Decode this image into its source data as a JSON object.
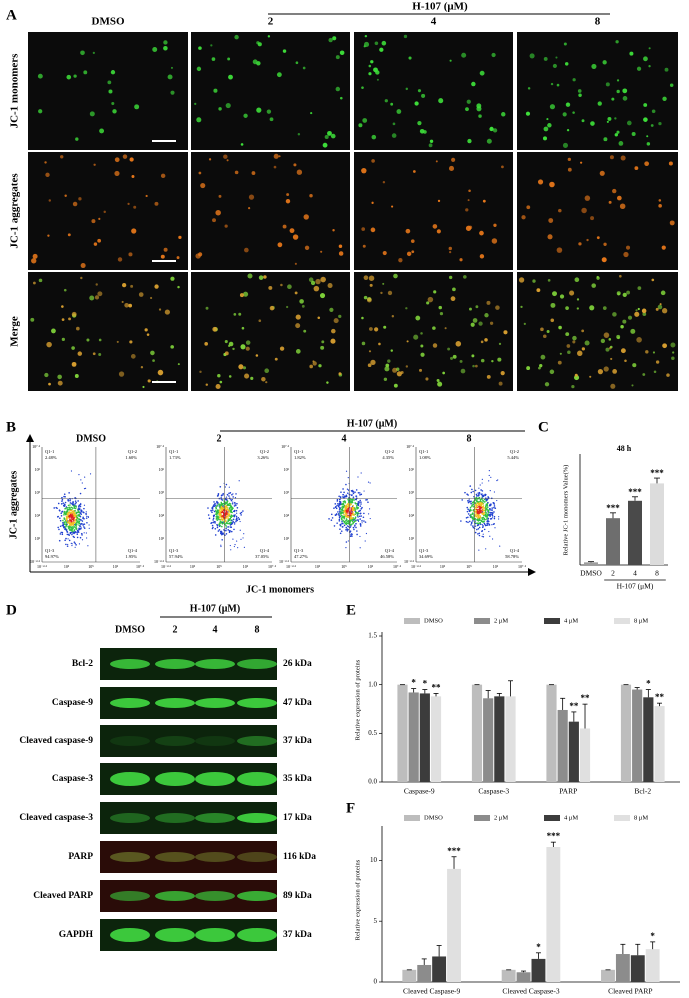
{
  "panel_a": {
    "label": "A",
    "control": "DMSO",
    "group": "H-107 (μM)",
    "doses": [
      "2",
      "4",
      "8"
    ],
    "rows": [
      "JC-1 monomers",
      "JC-1 aggregates",
      "Merge"
    ]
  },
  "panel_b": {
    "label": "B",
    "group": "H-107 (μM)",
    "x_label": "JC-1 monomers",
    "y_label": "JC-1 aggregates",
    "x_ticks": [
      "10⁻⁴·³",
      "10³",
      "10⁵",
      "10⁶",
      "10⁷·²"
    ],
    "y_ticks": [
      "10⁻⁴·³",
      "10³",
      "10⁴",
      "10⁵",
      "10⁶",
      "10⁷·²"
    ],
    "plots": [
      {
        "title": "DMSO",
        "quadrants": [
          "Q1-1",
          "Q1-2",
          "Q1-3",
          "Q1-4"
        ],
        "percent": [
          "2.48%",
          "1.60%",
          "94.97%",
          "1.95%"
        ]
      },
      {
        "title": "2",
        "quadrants": [
          "Q1-1",
          "Q1-2",
          "Q1-3",
          "Q1-4"
        ],
        "percent": [
          "1.73%",
          "3.26%",
          "57.94%",
          "37.05%"
        ]
      },
      {
        "title": "4",
        "quadrants": [
          "Q1-1",
          "Q1-2",
          "Q1-3",
          "Q1-4"
        ],
        "percent": [
          "1.82%",
          "4.35%",
          "47.27%",
          "46.58%"
        ]
      },
      {
        "title": "8",
        "quadrants": [
          "Q1-1",
          "Q1-2",
          "Q1-3",
          "Q1-4"
        ],
        "percent": [
          "1.08%",
          "5.44%",
          "34.69%",
          "58.78%"
        ]
      }
    ]
  },
  "panel_d": {
    "label": "D",
    "group": "H-107 (μM)",
    "lanes": [
      "DMSO",
      "2",
      "4",
      "8"
    ],
    "blots": [
      {
        "protein": "Bcl-2",
        "size": "26 kDa"
      },
      {
        "protein": "Caspase-9",
        "size": "47 kDa"
      },
      {
        "protein": "Cleaved caspase-9",
        "size": "37 kDa"
      },
      {
        "protein": "Caspase-3",
        "size": "35 kDa"
      },
      {
        "protein": "Cleaved caspase-3",
        "size": "17 kDa"
      },
      {
        "protein": "PARP",
        "size": "116 kDa"
      },
      {
        "protein": "Cleaved PARP",
        "size": "89 kDa"
      },
      {
        "protein": "GAPDH",
        "size": "37 kDa"
      }
    ]
  },
  "chart_data": [
    {
      "type": "bar",
      "panel_label": "C",
      "title": "48 h",
      "y_label": "Relative JC-1 monomers Value(%)",
      "categories": [
        "DMSO",
        "2",
        "4",
        "8"
      ],
      "group_label": "H-107 (μM)",
      "values": [
        2,
        35,
        48,
        61
      ],
      "errors": [
        0.5,
        4,
        3,
        4
      ],
      "annotations": [
        null,
        "***",
        "***",
        "***"
      ],
      "colors": [
        "#9e9e9e",
        "#6e6e6e",
        "#4a4a4a",
        "#dcdcdc"
      ],
      "ylim": [
        0,
        80
      ]
    },
    {
      "type": "grouped_bar",
      "panel_label": "E",
      "y_label": "Relative expression of proteins",
      "categories": [
        "Caspase-9",
        "Caspase-3",
        "PARP",
        "Bcl-2"
      ],
      "series": [
        {
          "name": "DMSO",
          "color": "#bdbdbd",
          "values": [
            1.0,
            1.0,
            1.0,
            1.0
          ],
          "errors": [
            0,
            0,
            0,
            0
          ],
          "annotations": [
            null,
            null,
            null,
            null
          ]
        },
        {
          "name": "2 μM",
          "color": "#8c8c8c",
          "values": [
            0.92,
            0.86,
            0.74,
            0.95
          ],
          "errors": [
            0.04,
            0.08,
            0.12,
            0.02
          ],
          "annotations": [
            "*",
            null,
            null,
            null
          ]
        },
        {
          "name": "4 μM",
          "color": "#3c3c3c",
          "values": [
            0.91,
            0.88,
            0.62,
            0.87
          ],
          "errors": [
            0.04,
            0.03,
            0.1,
            0.08
          ],
          "annotations": [
            "*",
            null,
            "**",
            "*"
          ]
        },
        {
          "name": "8 μM",
          "color": "#e0e0e0",
          "values": [
            0.88,
            0.88,
            0.55,
            0.78
          ],
          "errors": [
            0.03,
            0.16,
            0.25,
            0.03
          ],
          "annotations": [
            "**",
            null,
            "**",
            "**"
          ]
        }
      ],
      "ylim": [
        0,
        1.5
      ],
      "yticks": [
        {
          "value": 0,
          "label": "0.0"
        },
        {
          "value": 0.5,
          "label": "0.5"
        },
        {
          "value": 1,
          "label": "1.0"
        },
        {
          "value": 1.5,
          "label": "1.5"
        }
      ]
    },
    {
      "type": "grouped_bar",
      "panel_label": "F",
      "y_label": "Relative expression of proteins",
      "categories": [
        "Cleaved Caspase-9",
        "Cleaved Caspase-3",
        "Cleaved PARP"
      ],
      "series": [
        {
          "name": "DMSO",
          "color": "#bdbdbd",
          "values": [
            1,
            1,
            1
          ],
          "errors": [
            0,
            0,
            0
          ],
          "annotations": [
            null,
            null,
            null
          ]
        },
        {
          "name": "2 μM",
          "color": "#8c8c8c",
          "values": [
            1.4,
            0.8,
            2.3
          ],
          "errors": [
            0.5,
            0.1,
            0.8
          ],
          "annotations": [
            null,
            null,
            null
          ]
        },
        {
          "name": "4 μM",
          "color": "#3c3c3c",
          "values": [
            2.1,
            1.9,
            2.2
          ],
          "errors": [
            0.9,
            0.5,
            0.9
          ],
          "annotations": [
            null,
            "*",
            null
          ]
        },
        {
          "name": "8 μM",
          "color": "#e0e0e0",
          "values": [
            9.3,
            11.1,
            2.7
          ],
          "errors": [
            1.0,
            0.4,
            0.6
          ],
          "annotations": [
            "***",
            "***",
            "*"
          ]
        }
      ],
      "ylim": [
        0,
        12.5
      ],
      "yticks": [
        0,
        5,
        10
      ]
    }
  ]
}
